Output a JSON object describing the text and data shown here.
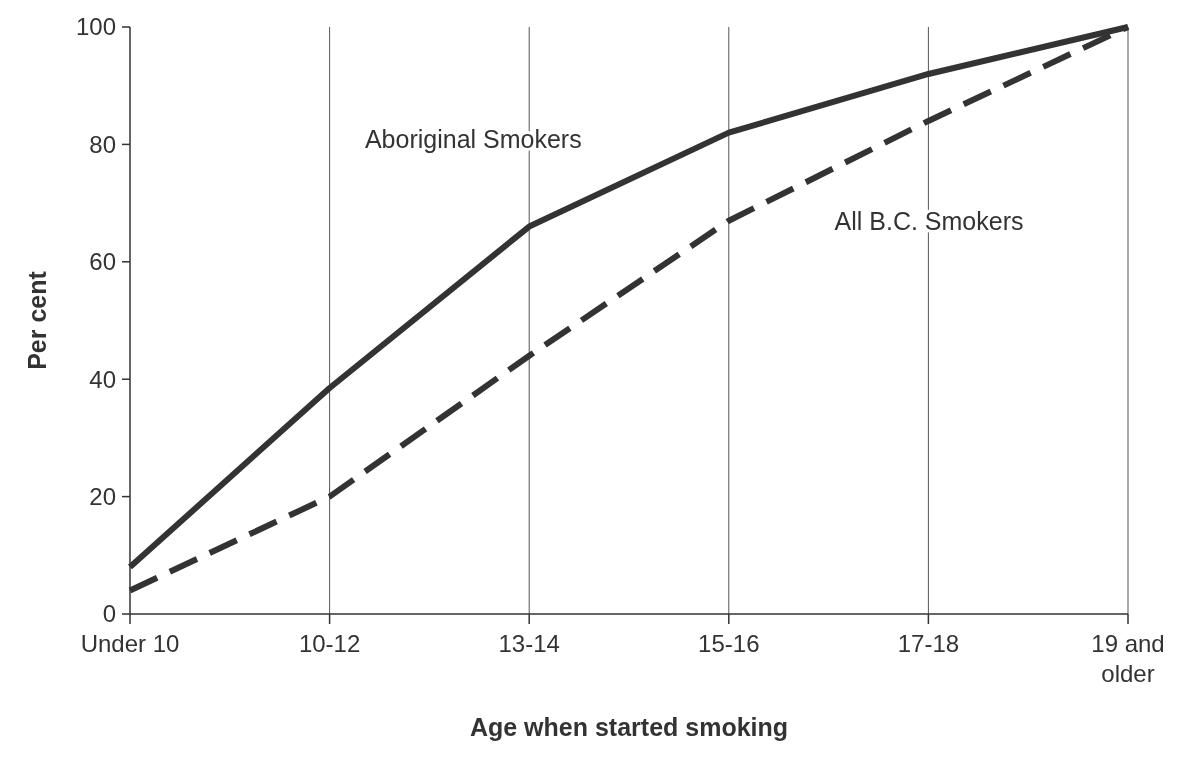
{
  "chart_data": {
    "type": "line",
    "xlabel": "Age when started smoking",
    "ylabel": "Per cent",
    "categories": [
      "Under 10",
      "10-12",
      "13-14",
      "15-16",
      "17-18",
      "19 and older"
    ],
    "series": [
      {
        "name": "Aboriginal Smokers",
        "color": "#333333",
        "line_style": "solid",
        "values": [
          8,
          38.5,
          66,
          82,
          92,
          100
        ]
      },
      {
        "name": "All B.C. Smokers",
        "color": "#333333",
        "line_style": "dashed",
        "values": [
          4,
          20,
          44,
          67,
          84,
          100
        ]
      }
    ],
    "ylim": [
      0,
      100
    ],
    "yticks": [
      0,
      20,
      40,
      60,
      80,
      100
    ],
    "grid": "x",
    "marker": "none"
  }
}
